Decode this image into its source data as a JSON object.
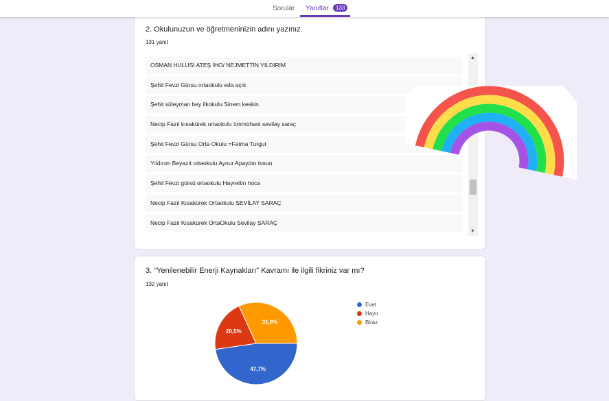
{
  "tabs": {
    "questions": "Sorular",
    "responses": "Yanıtlar",
    "response_count": "133"
  },
  "q2": {
    "title": "2. Okulunuzun ve öğretmeninizin adını yazınız.",
    "count": "131 yanıt",
    "answers": [
      "OSMAN HULUSİ ATEŞ İHO/ NEJMETTİN YILDIRIM",
      "Şehit Fevzi Gürsu ortaokulu eda açık",
      "Şehit süleyman bey ilkokulu Sinem keskin",
      "Necip Fazıl kısakürek ortaokulu ümmühani sevilay saraç",
      "Şehit Fevzi Gürsu Orta Okulu =Fatma Turgut",
      "Yıldırım Beyazıt ortaokulu Aynur Apaydın tosun",
      "Şehit Fevzi gürsü ortaokulu Hayrettin hoca",
      "Necip Fazıl Kısakürek Ortaokulu SEVİLAY SARAÇ",
      "Necip Fazıl Kısakürek OrtaOkulu Sevilay SARAÇ"
    ]
  },
  "q3": {
    "title": "3. \"Yenilenebilir Enerji Kaynakları\" Kavramı ile ilgili fikriniz var mı?",
    "count": "132 yanıt"
  },
  "chart_data": {
    "type": "pie",
    "categories": [
      "Evet",
      "Hayır",
      "Biraz"
    ],
    "values": [
      47.7,
      20.5,
      31.8
    ],
    "labels": [
      "47,7%",
      "20,5%",
      "31,8%"
    ],
    "colors": [
      "#3366cc",
      "#dc3912",
      "#ff9900"
    ],
    "legend": "right"
  }
}
